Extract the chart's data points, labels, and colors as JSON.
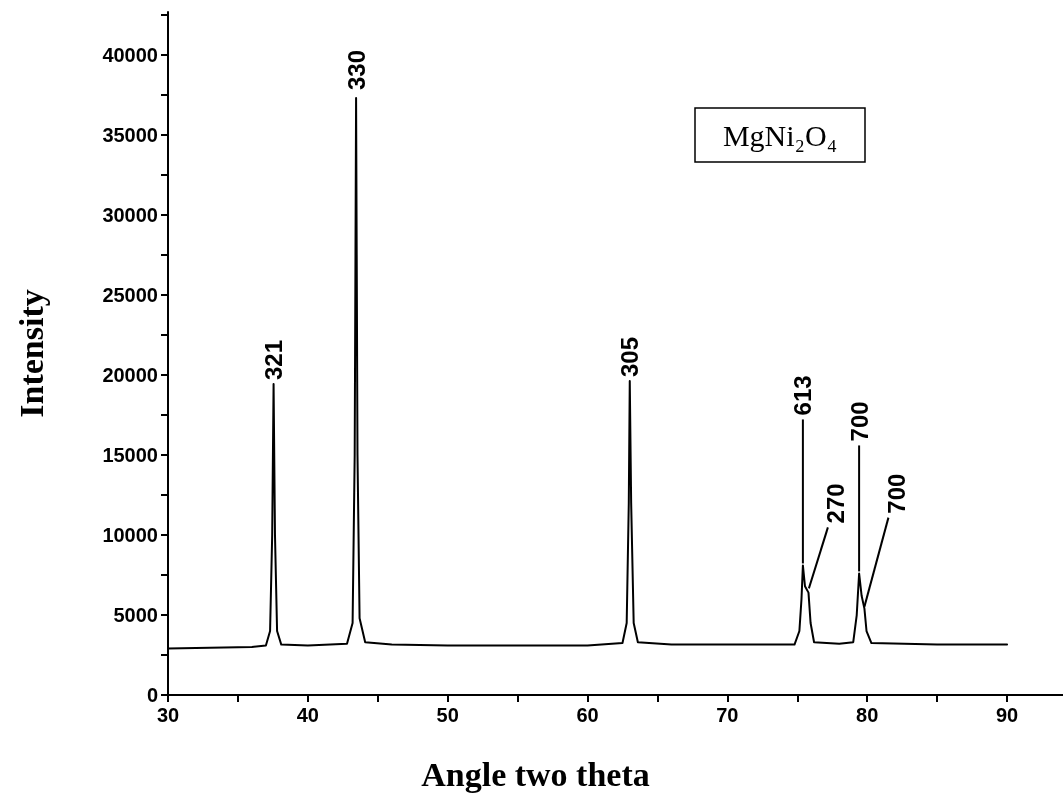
{
  "chart_data": {
    "type": "line",
    "xlabel": "Angle two theta",
    "ylabel": "Intensity",
    "xlim": [
      30,
      94
    ],
    "xticks": [
      30,
      {
        "value": 35,
        "label": null
      },
      40,
      {
        "value": 45,
        "label": null
      },
      50,
      {
        "value": 55,
        "label": null
      },
      60,
      {
        "value": 65,
        "label": null
      },
      70,
      {
        "value": 75,
        "label": null
      },
      80,
      {
        "value": 85,
        "label": null
      },
      90
    ],
    "ylim": [
      0,
      42700
    ],
    "yticks": [
      0,
      {
        "value": 2500,
        "label": null
      },
      5000,
      {
        "value": 7500,
        "label": null
      },
      10000,
      {
        "value": 12500,
        "label": null
      },
      15000,
      {
        "value": 17500,
        "label": null
      },
      20000,
      {
        "value": 22500,
        "label": null
      },
      25000,
      {
        "value": 27500,
        "label": null
      },
      30000,
      {
        "value": 32500,
        "label": null
      },
      35000,
      {
        "value": 37500,
        "label": null
      },
      40000,
      {
        "value": 42500,
        "label": null
      }
    ],
    "grid": false,
    "marker": "none",
    "line_style": "solid",
    "series": [
      {
        "color": "#000000",
        "x": [
          30,
          33,
          36,
          37.0,
          37.3,
          37.45,
          37.55,
          37.65,
          37.8,
          38.1,
          40,
          42.8,
          43.2,
          43.35,
          43.45,
          43.55,
          43.7,
          44.1,
          46,
          50,
          55,
          60,
          62.5,
          62.8,
          62.95,
          63.02,
          63.12,
          63.3,
          63.6,
          66,
          70,
          74.8,
          75.15,
          75.3,
          75.4,
          75.55,
          75.8,
          75.95,
          76.2,
          78,
          79.0,
          79.25,
          79.42,
          79.6,
          79.8,
          79.95,
          80.3,
          85,
          90
        ],
        "values": [
          2900,
          2950,
          3000,
          3100,
          4000,
          10000,
          19440,
          10000,
          4000,
          3150,
          3100,
          3200,
          4500,
          15000,
          37320,
          15000,
          4800,
          3300,
          3150,
          3100,
          3100,
          3100,
          3250,
          4500,
          12000,
          19630,
          12000,
          4500,
          3300,
          3150,
          3150,
          3150,
          4000,
          6000,
          8100,
          6800,
          6400,
          4500,
          3300,
          3200,
          3300,
          5000,
          7600,
          6200,
          5400,
          4000,
          3250,
          3150,
          3150
        ]
      }
    ],
    "annotations": [
      {
        "text": "321",
        "x": 37.55,
        "y": 19440
      },
      {
        "text": "330",
        "x": 43.45,
        "y": 37320
      },
      {
        "text": "305",
        "x": 63.02,
        "y": 19630
      },
      {
        "text": "613",
        "x": 75.4,
        "y": 8100
      },
      {
        "text": "270",
        "x": 75.83,
        "y": 6540
      },
      {
        "text": "700",
        "x": 79.8,
        "y": 5400
      },
      {
        "text": "700",
        "x": 79.42,
        "y": 7600
      },
      "MgNi₂O₄"
    ]
  }
}
